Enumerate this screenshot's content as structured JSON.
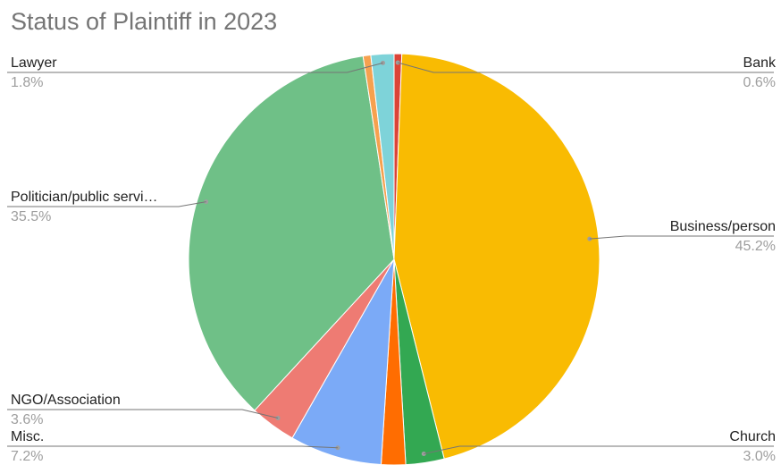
{
  "chart_data": {
    "type": "pie",
    "title": "Status of Plaintiff in 2023",
    "slices": [
      {
        "label": "Bank",
        "display_label": "Bank",
        "value": 0.6,
        "display_value": "0.6%",
        "color": "#db4437",
        "label_side": "right"
      },
      {
        "label": "Business/person",
        "display_label": "Business/person",
        "value": 45.2,
        "display_value": "45.2%",
        "color": "#f9bb02",
        "label_side": "right"
      },
      {
        "label": "Church",
        "display_label": "Church",
        "value": 3.0,
        "display_value": "3.0%",
        "color": "#33a852",
        "label_side": "right"
      },
      {
        "label": "",
        "display_label": "",
        "value": 1.9,
        "display_value": "",
        "color": "#ff6d01",
        "label_side": "none"
      },
      {
        "label": "Misc.",
        "display_label": "Misc.",
        "value": 7.2,
        "display_value": "7.2%",
        "color": "#7baaf7",
        "label_side": "left"
      },
      {
        "label": "NGO/Association",
        "display_label": "NGO/Association",
        "value": 3.6,
        "display_value": "3.6%",
        "color": "#ee7b73",
        "label_side": "left"
      },
      {
        "label": "Politician/public servi…",
        "display_label": "Politician/public servi…",
        "value": 35.5,
        "display_value": "35.5%",
        "color": "#6fc087",
        "label_side": "left"
      },
      {
        "label": "",
        "display_label": "",
        "value": 0.6,
        "display_value": "",
        "color": "#f6a14f",
        "label_side": "none"
      },
      {
        "label": "Lawyer",
        "display_label": "Lawyer",
        "value": 1.8,
        "display_value": "1.8%",
        "color": "#7ed3d9",
        "label_side": "left"
      }
    ],
    "legend": "none",
    "start_angle": "top",
    "direction": "clockwise"
  }
}
